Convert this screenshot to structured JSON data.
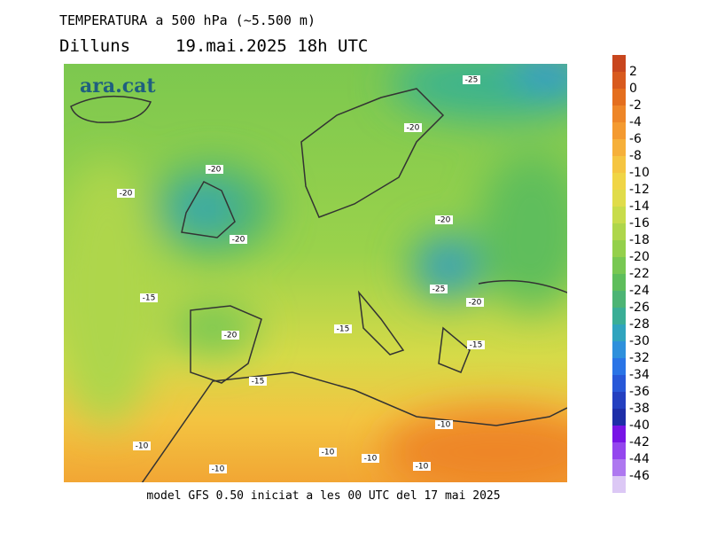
{
  "header": {
    "title": "TEMPERATURA a 500 hPa (~5.500 m)",
    "day": "Dilluns",
    "datetime": "19.mai.2025 18h UTC"
  },
  "logo": "ara.cat",
  "contour_labels": [
    "-25",
    "-20",
    "-20",
    "-20",
    "-20",
    "-20",
    "-25",
    "-20",
    "-15",
    "-20",
    "-15",
    "-15",
    "-15",
    "-10",
    "-10",
    "-10",
    "-10",
    "-10",
    "-10"
  ],
  "colorbar": {
    "ticks": [
      2,
      0,
      -2,
      -4,
      -6,
      -8,
      -10,
      -12,
      -14,
      -16,
      -18,
      -20,
      -22,
      -24,
      -26,
      -28,
      -30,
      -32,
      -34,
      -36,
      -38,
      -40,
      -42,
      -44,
      -46
    ],
    "colors": [
      "#c8461e",
      "#d85a1e",
      "#e46e1e",
      "#ee8628",
      "#f49a30",
      "#f6b03a",
      "#f5c541",
      "#f0d546",
      "#e0dc4a",
      "#c8dc4b",
      "#aed64b",
      "#94d04b",
      "#78c852",
      "#5ebe5c",
      "#4cb474",
      "#3aae96",
      "#30a4be",
      "#2e90dc",
      "#2a74e6",
      "#2858d8",
      "#2440c0",
      "#1e2ea8",
      "#7814e6",
      "#9446ee",
      "#ae78f0",
      "#dcc8f5"
    ]
  },
  "footer": "model GFS 0.50 iniciat a les 00 UTC del 17 mai 2025"
}
